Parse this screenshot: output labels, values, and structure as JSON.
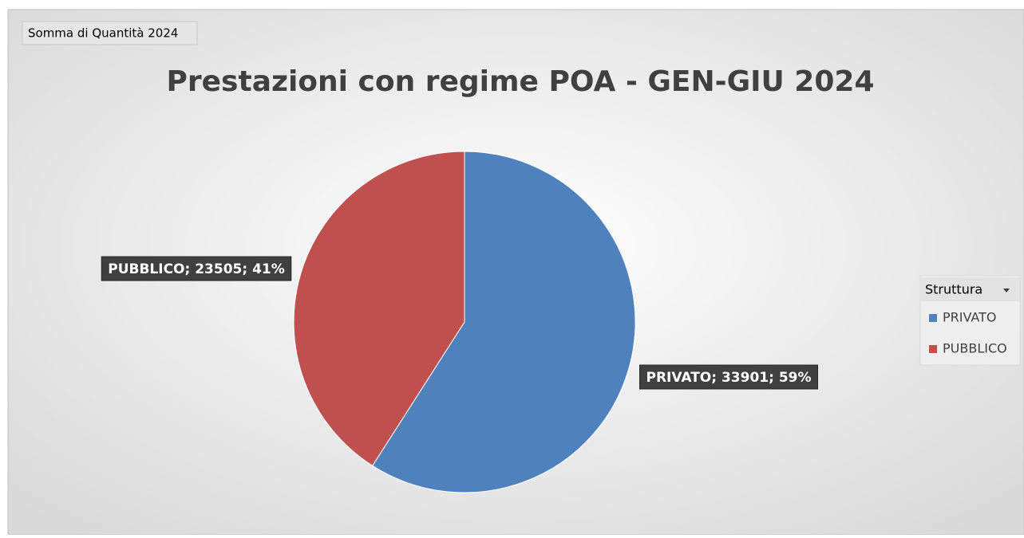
{
  "chart_data": {
    "type": "pie",
    "field_button": "Somma di Quantità 2024",
    "title": "Prestazioni con regime POA - GEN-GIU 2024",
    "categories": [
      "PRIVATO",
      "PUBBLICO"
    ],
    "values": [
      33901,
      23505
    ],
    "value_labels": [
      "PRIVATO; 33901; 59%",
      "PUBBLICO; 23505; 41%"
    ],
    "colors": [
      "#4f81bd",
      "#c0504d"
    ],
    "legend_title": "Struttura",
    "legend": "right"
  }
}
